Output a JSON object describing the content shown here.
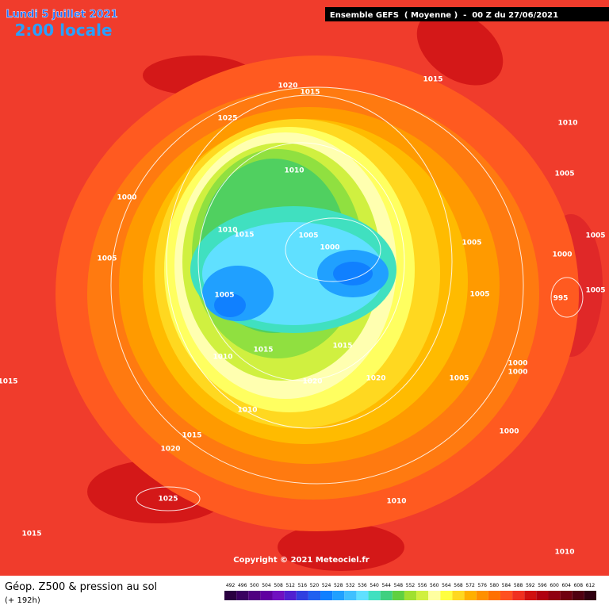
{
  "header": {
    "date": "Lundi 5 juillet 2021",
    "time": "2:00 locale",
    "model": "Ensemble GEFS  ( Moyenne )  -  00 Z du 27/06/2021"
  },
  "isobar_labels": [
    1020,
    1015,
    1015,
    1025,
    1010,
    1010,
    1005,
    1000,
    1010,
    1015,
    1005,
    1005,
    1005,
    1000,
    1000,
    1005,
    1005,
    1005,
    995,
    1005,
    1015,
    1015,
    1010,
    1000,
    1000,
    1020,
    1020,
    1005,
    1015,
    1010,
    1000,
    1015,
    1020,
    1025,
    1010,
    1015,
    1010
  ],
  "copyright": "Copyright © 2021 Meteociel.fr",
  "legend": {
    "title": "Géop. Z500 & pression au sol",
    "lead_time": "(+ 192h)",
    "scale": {
      "values": [
        492,
        496,
        500,
        504,
        508,
        512,
        516,
        520,
        524,
        528,
        532,
        536,
        540,
        544,
        548,
        552,
        556,
        560,
        564,
        568,
        572,
        576,
        580,
        584,
        588,
        592,
        596,
        600,
        604,
        608,
        612
      ],
      "colors": [
        "#2a0040",
        "#3a0060",
        "#500080",
        "#6000a0",
        "#7010c0",
        "#5020d0",
        "#3040e0",
        "#2060f0",
        "#1080ff",
        "#20a0ff",
        "#40c0ff",
        "#60e0ff",
        "#40e0c0",
        "#40d080",
        "#60d040",
        "#a0e030",
        "#d0f040",
        "#ffffa0",
        "#ffff40",
        "#ffd820",
        "#ffb000",
        "#ff9000",
        "#ff7000",
        "#ff5020",
        "#f03020",
        "#d01010",
        "#b00010",
        "#900010",
        "#700010",
        "#500010",
        "#300010"
      ]
    }
  }
}
